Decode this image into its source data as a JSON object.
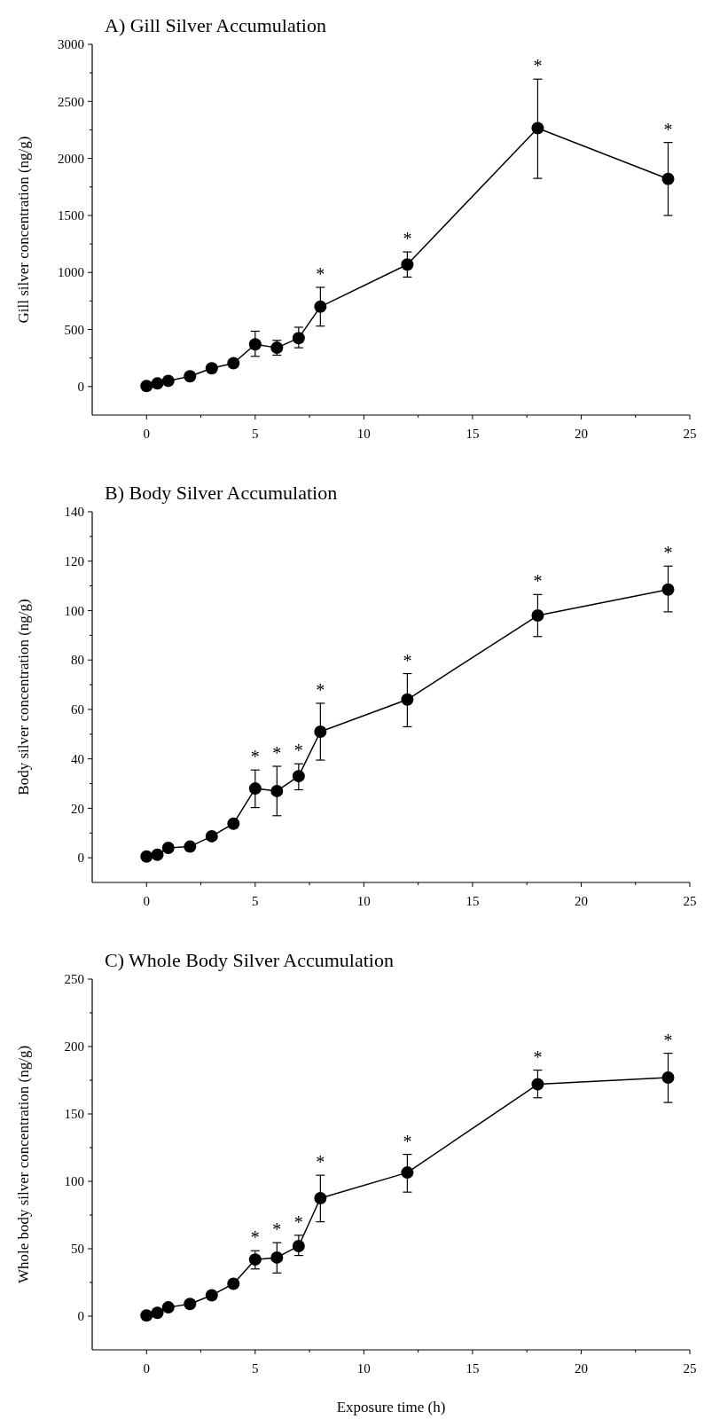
{
  "chart_data": [
    {
      "type": "line",
      "title": "A) Gill Silver Accumulation",
      "ylabel": "Gill silver concentration (ng/g)",
      "x": [
        0,
        0.5,
        1,
        2,
        3,
        4,
        5,
        6,
        7,
        8,
        12,
        18,
        24
      ],
      "xlim": [
        -2.5,
        25
      ],
      "xticks": [
        0,
        {
          "value": 2.5,
          "label": null
        },
        5,
        {
          "value": 7.5,
          "label": null
        },
        10,
        {
          "value": 12.5,
          "label": null
        },
        15,
        {
          "value": 17.5,
          "label": null
        },
        20,
        {
          "value": 22.5,
          "label": null
        },
        25
      ],
      "ylim": [
        -250,
        3000
      ],
      "yticks": [
        0,
        {
          "value": 250,
          "label": null
        },
        500,
        {
          "value": 750,
          "label": null
        },
        1000,
        {
          "value": 1250,
          "label": null
        },
        1500,
        {
          "value": 1750,
          "label": null
        },
        2000,
        {
          "value": 2250,
          "label": null
        },
        2500,
        {
          "value": 2750,
          "label": null
        },
        3000
      ],
      "marker": "circle",
      "series": [
        {
          "color": "#000000",
          "values": [
            5,
            27,
            50,
            90,
            160,
            205,
            370,
            340,
            425,
            700,
            1070,
            2265,
            1820
          ],
          "errors": [
            null,
            null,
            null,
            null,
            null,
            [
              175,
              235
            ],
            [
              265,
              485
            ],
            [
              275,
              405
            ],
            [
              340,
              520
            ],
            [
              530,
              870
            ],
            [
              960,
              1180
            ],
            [
              1825,
              2695
            ],
            [
              1500,
              2140
            ]
          ]
        }
      ],
      "annotations": [
        {
          "text": "*",
          "x": 8,
          "y": 700
        },
        {
          "text": "*",
          "x": 12,
          "y": 1070
        },
        {
          "text": "*",
          "x": 18,
          "y": 2265
        },
        {
          "text": "*",
          "x": 24,
          "y": 1820
        }
      ]
    },
    {
      "type": "line",
      "title": "B) Body Silver Accumulation",
      "ylabel": "Body silver concentration (ng/g)",
      "x": [
        0,
        0.5,
        1,
        2,
        3,
        4,
        5,
        6,
        7,
        8,
        12,
        18,
        24
      ],
      "xlim": [
        -2.5,
        25
      ],
      "xticks": [
        0,
        {
          "value": 2.5,
          "label": null
        },
        5,
        {
          "value": 7.5,
          "label": null
        },
        10,
        {
          "value": 12.5,
          "label": null
        },
        15,
        {
          "value": 17.5,
          "label": null
        },
        20,
        {
          "value": 22.5,
          "label": null
        },
        25
      ],
      "ylim": [
        -10,
        140
      ],
      "yticks": [
        0,
        {
          "value": 10,
          "label": null
        },
        20,
        {
          "value": 30,
          "label": null
        },
        40,
        {
          "value": 50,
          "label": null
        },
        60,
        {
          "value": 70,
          "label": null
        },
        80,
        {
          "value": 90,
          "label": null
        },
        100,
        {
          "value": 110,
          "label": null
        },
        120,
        {
          "value": 130,
          "label": null
        },
        140
      ],
      "marker": "circle",
      "series": [
        {
          "color": "#000000",
          "values": [
            0.5,
            1.2,
            4,
            4.5,
            8.7,
            13.8,
            28,
            27,
            33,
            51,
            64,
            98,
            108.5
          ],
          "errors": [
            null,
            null,
            null,
            null,
            null,
            [
              12.3,
              15.3
            ],
            [
              20.3,
              35.5
            ],
            [
              17,
              37
            ],
            [
              27.5,
              38
            ],
            [
              39.5,
              62.5
            ],
            [
              53,
              74.5
            ],
            [
              89.5,
              106.5
            ],
            [
              99.5,
              118
            ]
          ]
        }
      ],
      "annotations": [
        {
          "text": "*",
          "x": 5,
          "y": 28
        },
        {
          "text": "*",
          "x": 6,
          "y": 27
        },
        {
          "text": "*",
          "x": 7,
          "y": 33
        },
        {
          "text": "*",
          "x": 8,
          "y": 51
        },
        {
          "text": "*",
          "x": 12,
          "y": 64
        },
        {
          "text": "*",
          "x": 18,
          "y": 98
        },
        {
          "text": "*",
          "x": 24,
          "y": 108.5
        }
      ]
    },
    {
      "type": "line",
      "title": "C) Whole Body Silver Accumulation",
      "ylabel": "Whole body silver concentration (ng/g)",
      "xlabel": "Exposure time (h)",
      "x": [
        0,
        0.5,
        1,
        2,
        3,
        4,
        5,
        6,
        7,
        8,
        12,
        18,
        24
      ],
      "xlim": [
        -2.5,
        25
      ],
      "xticks": [
        0,
        {
          "value": 2.5,
          "label": null
        },
        5,
        {
          "value": 7.5,
          "label": null
        },
        10,
        {
          "value": 12.5,
          "label": null
        },
        15,
        {
          "value": 17.5,
          "label": null
        },
        20,
        {
          "value": 22.5,
          "label": null
        },
        25
      ],
      "ylim": [
        -25,
        250
      ],
      "yticks": [
        0,
        {
          "value": 25,
          "label": null
        },
        50,
        {
          "value": 75,
          "label": null
        },
        100,
        {
          "value": 125,
          "label": null
        },
        150,
        {
          "value": 175,
          "label": null
        },
        200,
        {
          "value": 225,
          "label": null
        },
        250
      ],
      "marker": "circle",
      "series": [
        {
          "color": "#000000",
          "values": [
            0.5,
            2.5,
            6.5,
            9,
            15.5,
            24,
            42,
            43.5,
            52,
            87.5,
            106.5,
            172,
            177
          ],
          "errors": [
            null,
            null,
            null,
            null,
            null,
            null,
            [
              35,
              48.5
            ],
            [
              32,
              54.5
            ],
            [
              45,
              60
            ],
            [
              70,
              104.5
            ],
            [
              92,
              120
            ],
            [
              162,
              182.5
            ],
            [
              158.5,
              195
            ]
          ]
        }
      ],
      "annotations": [
        {
          "text": "*",
          "x": 5,
          "y": 42
        },
        {
          "text": "*",
          "x": 6,
          "y": 43.5
        },
        {
          "text": "*",
          "x": 7,
          "y": 52
        },
        {
          "text": "*",
          "x": 8,
          "y": 87.5
        },
        {
          "text": "*",
          "x": 12,
          "y": 106.5
        },
        {
          "text": "*",
          "x": 18,
          "y": 172
        },
        {
          "text": "*",
          "x": 24,
          "y": 177
        }
      ]
    }
  ]
}
